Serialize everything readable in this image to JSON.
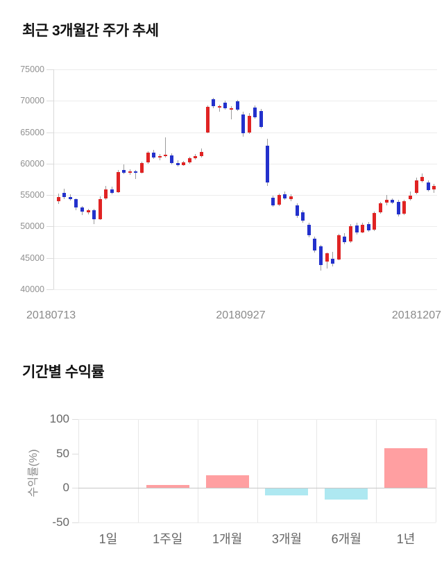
{
  "section1": {
    "title": "최근 3개월간 주가 추세"
  },
  "section2": {
    "title": "기간별 수익률"
  },
  "colors": {
    "candle_up": "#e02323",
    "candle_down": "#2331cc",
    "wick": "#9b9b9b",
    "bar_positive": "#ff9fa1",
    "bar_negative": "#aee8f1"
  },
  "chart_data": [
    {
      "type": "candlestick",
      "title": "최근 3개월간 주가 추세",
      "x_tick_labels": [
        "20180713",
        "20180927",
        "20181207"
      ],
      "y_ticks": [
        75000,
        70000,
        65000,
        60000,
        55000,
        50000,
        45000,
        40000
      ],
      "ylim": [
        40000,
        75000
      ],
      "grid": "horizontal",
      "up_color_meaning": "price up (red)",
      "down_color_meaning": "price down (blue)",
      "candles_ohlc": [
        [
          54000,
          55200,
          53600,
          54700
        ],
        [
          55400,
          56000,
          54300,
          54700
        ],
        [
          54700,
          55100,
          54100,
          54300
        ],
        [
          54300,
          54500,
          52600,
          53000
        ],
        [
          53000,
          53300,
          51800,
          52400
        ],
        [
          52300,
          52800,
          51900,
          52600
        ],
        [
          52600,
          52800,
          50400,
          51100
        ],
        [
          51100,
          54800,
          51000,
          54400
        ],
        [
          54500,
          56400,
          54200,
          55900
        ],
        [
          55900,
          56300,
          55100,
          55400
        ],
        [
          55500,
          59000,
          55300,
          58700
        ],
        [
          59000,
          59900,
          58300,
          58600
        ],
        [
          58700,
          59100,
          58200,
          58800
        ],
        [
          58800,
          59000,
          57600,
          58500
        ],
        [
          58600,
          60300,
          58400,
          60100
        ],
        [
          60200,
          62000,
          60000,
          61700
        ],
        [
          61800,
          62200,
          60800,
          61000
        ],
        [
          61000,
          61500,
          60500,
          61200
        ],
        [
          61200,
          64200,
          61000,
          61400
        ],
        [
          61300,
          61600,
          59900,
          60100
        ],
        [
          60100,
          60500,
          59500,
          59800
        ],
        [
          59800,
          60400,
          59600,
          60200
        ],
        [
          60200,
          61100,
          60000,
          60900
        ],
        [
          60900,
          61500,
          60600,
          61200
        ],
        [
          61200,
          62400,
          61000,
          61900
        ],
        [
          65000,
          69300,
          64800,
          69000
        ],
        [
          70300,
          70500,
          68800,
          69200
        ],
        [
          68900,
          69400,
          68300,
          69100
        ],
        [
          69700,
          70000,
          68600,
          68800
        ],
        [
          68800,
          69200,
          67000,
          68800
        ],
        [
          69900,
          70100,
          68400,
          68600
        ],
        [
          67800,
          68300,
          64300,
          64800
        ],
        [
          64900,
          68000,
          64700,
          67600
        ],
        [
          68900,
          69300,
          67200,
          67400
        ],
        [
          68400,
          68700,
          65600,
          65800
        ],
        [
          62800,
          64000,
          56500,
          57000
        ],
        [
          54600,
          54900,
          53100,
          53400
        ],
        [
          53500,
          55200,
          53300,
          55000
        ],
        [
          55100,
          55600,
          54200,
          54500
        ],
        [
          54300,
          55100,
          54000,
          54800
        ],
        [
          53400,
          53700,
          51400,
          51700
        ],
        [
          52300,
          52600,
          50600,
          50900
        ],
        [
          50300,
          50600,
          48300,
          48600
        ],
        [
          48100,
          48400,
          45900,
          46200
        ],
        [
          46800,
          47100,
          43000,
          43900
        ],
        [
          44400,
          45900,
          43300,
          45700
        ],
        [
          44900,
          46000,
          43600,
          44100
        ],
        [
          44800,
          48800,
          44600,
          48600
        ],
        [
          48400,
          48900,
          47200,
          47500
        ],
        [
          47600,
          50400,
          47400,
          50100
        ],
        [
          50200,
          50600,
          48700,
          49000
        ],
        [
          49100,
          50600,
          48900,
          50300
        ],
        [
          50400,
          50700,
          49200,
          49400
        ],
        [
          49500,
          52400,
          49300,
          52100
        ],
        [
          52200,
          53900,
          52000,
          53700
        ],
        [
          53800,
          55000,
          53400,
          54200
        ],
        [
          54200,
          54500,
          53600,
          53800
        ],
        [
          53900,
          54200,
          51600,
          51900
        ],
        [
          52000,
          54200,
          51800,
          54000
        ],
        [
          54300,
          55600,
          54100,
          54900
        ],
        [
          55300,
          57800,
          55100,
          57300
        ],
        [
          57200,
          58400,
          57000,
          57900
        ],
        [
          57000,
          57300,
          55600,
          55800
        ],
        [
          55900,
          56800,
          55300,
          56400
        ]
      ]
    },
    {
      "type": "bar",
      "categories": [
        "1일",
        "1주일",
        "1개월",
        "3개월",
        "6개월",
        "1년"
      ],
      "values": [
        0,
        4,
        18,
        -10,
        -16,
        58
      ],
      "ylabel": "수익률(%)",
      "y_ticks": [
        100,
        50,
        0,
        -50
      ],
      "ylim": [
        -50,
        100
      ],
      "grid": "vertical + zero line",
      "legend": "none",
      "positive_color": "#ff9fa1",
      "negative_color": "#aee8f1"
    }
  ]
}
